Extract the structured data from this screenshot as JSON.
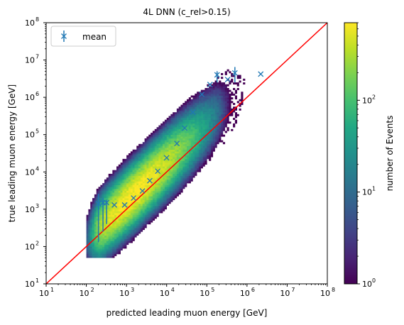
{
  "chart_data": {
    "type": "heatmap",
    "title": "4L DNN (c_rel>0.15)",
    "xlabel": "predicted leading muon energy [GeV]",
    "ylabel": "true leading muon energy [GeV]",
    "xscale": "log",
    "yscale": "log",
    "xlim": [
      10,
      100000000
    ],
    "ylim": [
      10,
      100000000
    ],
    "x_ticks": [
      {
        "base": "10",
        "exp": "1"
      },
      {
        "base": "10",
        "exp": "2"
      },
      {
        "base": "10",
        "exp": "3"
      },
      {
        "base": "10",
        "exp": "4"
      },
      {
        "base": "10",
        "exp": "5"
      },
      {
        "base": "10",
        "exp": "6"
      },
      {
        "base": "10",
        "exp": "7"
      },
      {
        "base": "10",
        "exp": "8"
      }
    ],
    "y_ticks": [
      {
        "base": "10",
        "exp": "1"
      },
      {
        "base": "10",
        "exp": "2"
      },
      {
        "base": "10",
        "exp": "3"
      },
      {
        "base": "10",
        "exp": "4"
      },
      {
        "base": "10",
        "exp": "5"
      },
      {
        "base": "10",
        "exp": "6"
      },
      {
        "base": "10",
        "exp": "7"
      },
      {
        "base": "10",
        "exp": "8"
      }
    ],
    "grid": false,
    "legend": {
      "placement": "top-left",
      "entries": [
        "mean"
      ]
    },
    "colorbar": {
      "label": "number of Events",
      "scale": "log",
      "range": [
        1,
        700
      ],
      "colormap": "viridis",
      "ticks": [
        {
          "base": "10",
          "exp": "0"
        },
        {
          "base": "10",
          "exp": "1"
        },
        {
          "base": "10",
          "exp": "2"
        }
      ]
    },
    "diagonal_line": {
      "color": "#ff0000",
      "from": [
        10,
        10
      ],
      "to": [
        100000000,
        100000000
      ]
    },
    "density": {
      "ridge": "log10(y) ≈ 0.08 + 1.04·log10(x) for 2 < log10(x) < 5.5",
      "peak_counts": 700,
      "peak_near": [
        1500,
        2000
      ]
    },
    "series": [
      {
        "name": "mean",
        "color": "#1f77b4",
        "marker": "x",
        "points": [
          {
            "x": 200,
            "y": 1400,
            "ylow": 130,
            "yhigh": 2600
          },
          {
            "x": 260,
            "y": 1500,
            "ylow": 250,
            "yhigh": 2000
          },
          {
            "x": 320,
            "y": 1500,
            "ylow": 400,
            "yhigh": 1800
          },
          {
            "x": 500,
            "y": 1300
          },
          {
            "x": 900,
            "y": 1300
          },
          {
            "x": 1500,
            "y": 2000
          },
          {
            "x": 2500,
            "y": 3100
          },
          {
            "x": 3800,
            "y": 5800
          },
          {
            "x": 6000,
            "y": 10500
          },
          {
            "x": 10000,
            "y": 24000
          },
          {
            "x": 18000,
            "y": 58000
          },
          {
            "x": 28000,
            "y": 150000
          },
          {
            "x": 45000,
            "y": 400000
          },
          {
            "x": 75000,
            "y": 1200000
          },
          {
            "x": 120000,
            "y": 2200000
          },
          {
            "x": 180000,
            "y": 4000000,
            "ylow": 2500000,
            "yhigh": 5000000
          },
          {
            "x": 330000,
            "y": 3000000
          },
          {
            "x": 500000,
            "y": 4500000,
            "ylow": 2500000,
            "yhigh": 6500000
          },
          {
            "x": 2200000,
            "y": 4200000
          }
        ]
      }
    ]
  }
}
